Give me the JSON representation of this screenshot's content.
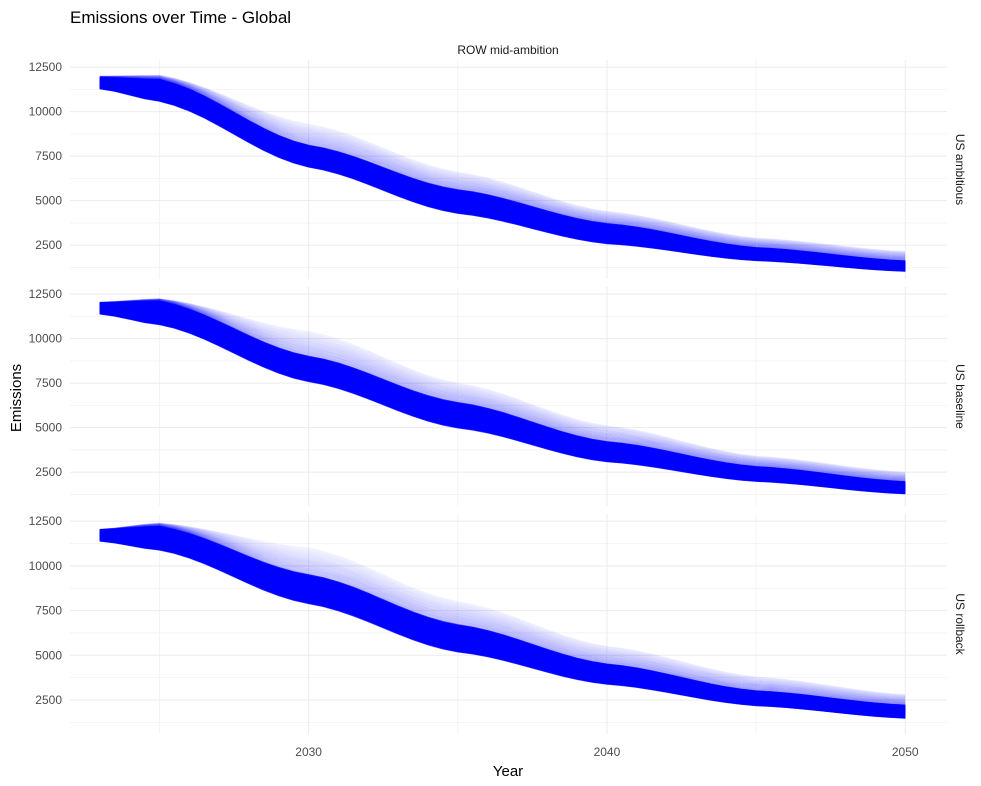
{
  "chart_data": {
    "type": "line",
    "title": "Emissions over Time - Global",
    "facet_column": "ROW mid-ambition",
    "xlabel": "Year",
    "ylabel": "Emissions",
    "xlim": [
      2022,
      2051.4
    ],
    "x_ticks": [
      2030,
      2040,
      2050
    ],
    "x_tick_labels": [
      "2030",
      "2040",
      "2050"
    ],
    "ylim": [
      600,
      12900
    ],
    "y_ticks": [
      2500,
      5000,
      7500,
      10000,
      12500
    ],
    "y_tick_labels": [
      "2500",
      "5000",
      "7500",
      "10000",
      "12500"
    ],
    "grid": true,
    "line_color": "#0000ff",
    "legend": "none",
    "x": [
      2023,
      2025,
      2030,
      2035,
      2040,
      2045,
      2050
    ],
    "panels": [
      {
        "label": "US ambitious",
        "lower": [
          11300,
          10600,
          6900,
          4300,
          2600,
          1650,
          1050
        ],
        "dense_upper": [
          11900,
          11800,
          8100,
          5600,
          3700,
          2350,
          1600
        ],
        "sparse_upper": [
          12000,
          12050,
          9300,
          6600,
          4400,
          2900,
          2150
        ]
      },
      {
        "label": "US baseline",
        "lower": [
          11400,
          10800,
          7600,
          5000,
          3100,
          2000,
          1300
        ],
        "dense_upper": [
          12000,
          12100,
          9000,
          6400,
          4200,
          2800,
          1950
        ],
        "sparse_upper": [
          12050,
          12250,
          10400,
          7500,
          5100,
          3400,
          2500
        ]
      },
      {
        "label": "US rollback",
        "lower": [
          11400,
          10900,
          7900,
          5200,
          3400,
          2200,
          1500
        ],
        "dense_upper": [
          12000,
          12200,
          9500,
          6700,
          4500,
          3000,
          2200
        ],
        "sparse_upper": [
          12050,
          12400,
          11000,
          8000,
          5500,
          3800,
          2800
        ]
      }
    ]
  }
}
